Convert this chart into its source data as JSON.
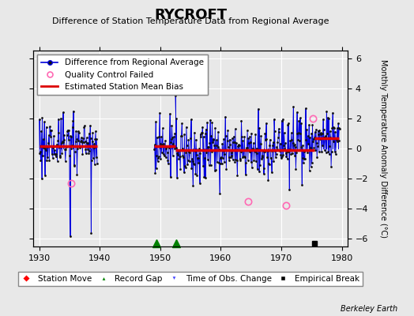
{
  "title": "RYCROFT",
  "subtitle": "Difference of Station Temperature Data from Regional Average",
  "ylabel_right": "Monthly Temperature Anomaly Difference (°C)",
  "xlim": [
    1929,
    1981
  ],
  "ylim": [
    -6.5,
    6.5
  ],
  "yticks": [
    -6,
    -4,
    -2,
    0,
    2,
    4,
    6
  ],
  "xticks": [
    1930,
    1940,
    1950,
    1960,
    1970,
    1980
  ],
  "background_color": "#e8e8e8",
  "grid_color": "white",
  "watermark": "Berkeley Earth",
  "line_color": "#0000dd",
  "bias_color": "#dd0000",
  "qc_color": "#ff69b4",
  "marker_color": "#111111",
  "bias_segments": [
    {
      "x": [
        1930.0,
        1939.6
      ],
      "y": [
        0.15,
        0.15
      ]
    },
    {
      "x": [
        1949.0,
        1952.5
      ],
      "y": [
        0.15,
        0.15
      ]
    },
    {
      "x": [
        1952.5,
        1975.5
      ],
      "y": [
        -0.1,
        -0.1
      ]
    },
    {
      "x": [
        1975.5,
        1979.6
      ],
      "y": [
        0.7,
        0.7
      ]
    }
  ],
  "record_gaps": [
    1949.4,
    1952.6
  ],
  "empirical_break": 1975.5,
  "qc_points": [
    [
      1935.25,
      -2.3
    ],
    [
      1964.5,
      -3.5
    ],
    [
      1970.75,
      -3.8
    ],
    [
      1975.25,
      2.0
    ]
  ],
  "seg1_range": [
    1930.0,
    1939.6,
    0.3,
    1.0,
    1
  ],
  "seg2_range": [
    1949.0,
    1952.5,
    0.3,
    0.9,
    2
  ],
  "seg3_range": [
    1952.5,
    1975.5,
    -0.05,
    1.0,
    3
  ],
  "seg4_range": [
    1975.5,
    1979.7,
    0.7,
    0.8,
    4
  ],
  "fontsize_title": 13,
  "fontsize_subtitle": 8,
  "fontsize_ticks": 8,
  "fontsize_legend": 7.5,
  "fontsize_ylabel": 7
}
